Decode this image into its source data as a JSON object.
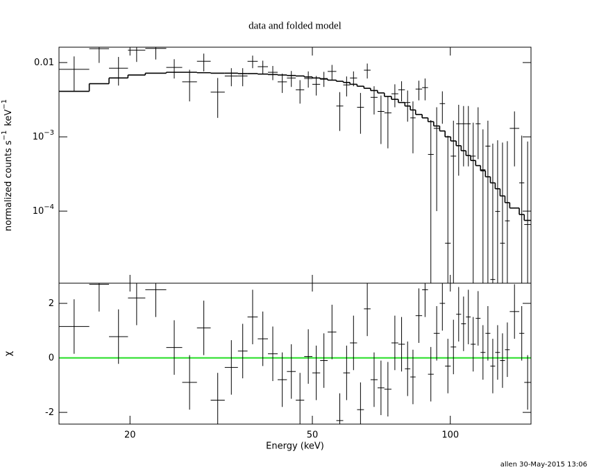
{
  "chart_data": [
    {
      "type": "errorbar",
      "title": "data and folded model",
      "ylabel": [
        {
          "text": "normalized counts s",
          "sup": "−1"
        },
        {
          "text": "keV",
          "sup": "−1"
        }
      ],
      "ylog": true,
      "ylim": [
        1.07e-05,
        0.0161
      ],
      "yticks": [
        {
          "value": 0.01,
          "label": "0.01"
        },
        {
          "value": 0.001,
          "label": "10",
          "exponent": "−3"
        },
        {
          "value": 0.0001,
          "label": "10",
          "exponent": "−4"
        }
      ],
      "color": "#000000",
      "data": {
        "values": [
          0.0081,
          0.0154,
          0.0084,
          0.0147,
          0.0155,
          0.0086,
          0.0055,
          0.0104,
          0.004,
          0.0066,
          0.0066,
          0.0104,
          0.0088,
          0.0074,
          0.0055,
          0.0062,
          0.0043,
          0.0061,
          0.0051,
          0.0061,
          0.0076,
          0.0026,
          0.005,
          0.0062,
          0.0025,
          0.0079,
          0.0034,
          0.0022,
          0.0021,
          0.0038,
          0.0043,
          0.0029,
          0.0018,
          0.0044,
          0.0046,
          0.00058,
          0.0013,
          0.0028,
          3.7e-05,
          0.00055,
          0.0015,
          0.0015,
          0.0015,
          0.00055,
          0.0015,
          0.00036,
          0.00075,
          1.2e-05,
          9.9e-05,
          3.7e-05,
          7.4e-05,
          0.0013,
          0.00024,
          6.6e-05
        ],
        "errors": [
          0.004,
          0.0055,
          0.0035,
          0.0045,
          0.0045,
          0.0025,
          0.0025,
          0.0028,
          0.0022,
          0.0018,
          0.0018,
          0.002,
          0.0018,
          0.0016,
          0.0016,
          0.0015,
          0.0015,
          0.0015,
          0.0015,
          0.0014,
          0.0017,
          0.0014,
          0.0015,
          0.0014,
          0.0014,
          0.0018,
          0.0014,
          0.0014,
          0.0014,
          0.0013,
          0.0013,
          0.0013,
          0.0012,
          0.0013,
          0.0015,
          0.0011,
          0.0012,
          0.0013,
          0.001,
          0.0011,
          0.0012,
          0.0011,
          0.0011,
          0.001,
          0.001,
          0.0009,
          0.0009,
          0.0008,
          0.0008,
          0.0008,
          0.0008,
          0.0009,
          0.0008,
          0.0008
        ]
      },
      "model": {
        "values": [
          0.0041,
          0.0052,
          0.0062,
          0.0068,
          0.0072,
          0.0074,
          0.0074,
          0.0073,
          0.0072,
          0.0072,
          0.0071,
          0.0071,
          0.007,
          0.0069,
          0.0068,
          0.0067,
          0.0066,
          0.0064,
          0.0062,
          0.006,
          0.0058,
          0.0056,
          0.0054,
          0.0051,
          0.0048,
          0.0045,
          0.0042,
          0.0039,
          0.0035,
          0.0032,
          0.0029,
          0.0026,
          0.0023,
          0.002,
          0.0018,
          0.0016,
          0.0014,
          0.0012,
          0.001,
          0.00088,
          0.00076,
          0.00065,
          0.00056,
          0.00048,
          0.00041,
          0.00035,
          0.00029,
          0.00024,
          0.0002,
          0.00016,
          0.00013,
          0.00011,
          9e-05,
          7.5e-05
        ]
      }
    },
    {
      "type": "errorbar",
      "xlabel": "Energy (keV)",
      "ylabel": [
        {
          "text": "χ"
        }
      ],
      "xlog": true,
      "xlim": [
        14,
        150
      ],
      "xticks": [
        20,
        50,
        100
      ],
      "bins": [
        14,
        16.3,
        18,
        19.8,
        21.6,
        24,
        26,
        28,
        30,
        32.2,
        34.4,
        36.1,
        38,
        40,
        42,
        44,
        46,
        48,
        50,
        52,
        54,
        56.4,
        58.4,
        60.4,
        62.6,
        64.8,
        67,
        69.4,
        71.8,
        74.4,
        77,
        79.6,
        81.8,
        84,
        86.8,
        89.4,
        92,
        94.8,
        97.4,
        100.2,
        103,
        105.6,
        108.2,
        110.8,
        113.6,
        116.4,
        119.3,
        122.3,
        125.3,
        128.4,
        131.6,
        134.8,
        141.4,
        145,
        150
      ],
      "ylim": [
        -2.43,
        2.74
      ],
      "yticks": [
        -2,
        0,
        2
      ],
      "color": "#000000",
      "zero_line": {
        "value": 0,
        "color": "#22dd22"
      },
      "data": {
        "values": [
          1.15,
          2.7,
          0.78,
          2.2,
          2.5,
          0.38,
          -0.9,
          1.1,
          -1.55,
          -0.35,
          0.25,
          1.5,
          0.7,
          0.15,
          -0.8,
          -0.5,
          -1.55,
          0.05,
          -0.55,
          -0.1,
          0.95,
          -2.3,
          -0.55,
          0.55,
          -1.9,
          1.8,
          -0.8,
          -1.1,
          -1.15,
          0.55,
          0.5,
          -0.4,
          -0.7,
          1.55,
          2.5,
          -0.6,
          0.9,
          2.0,
          -0.3,
          0.4,
          1.6,
          1.25,
          1.5,
          0.5,
          1.45,
          0.2,
          0.9,
          -0.3,
          0.2,
          -0.1,
          0.3,
          1.7,
          0.9,
          -0.9
        ],
        "errors": [
          1,
          1,
          1,
          1,
          1,
          1,
          1,
          1,
          1,
          1,
          1,
          1,
          1,
          1,
          1,
          1,
          1,
          1,
          1,
          1,
          1,
          1,
          1,
          1,
          1,
          1,
          1,
          1,
          1,
          1,
          1,
          1,
          1,
          1,
          1,
          1,
          1,
          1,
          1,
          1,
          1,
          1,
          1,
          1,
          1,
          1,
          1,
          1,
          1,
          1,
          1,
          1,
          1,
          1
        ]
      }
    }
  ],
  "footer": "allen 30-May-2015 13:06"
}
